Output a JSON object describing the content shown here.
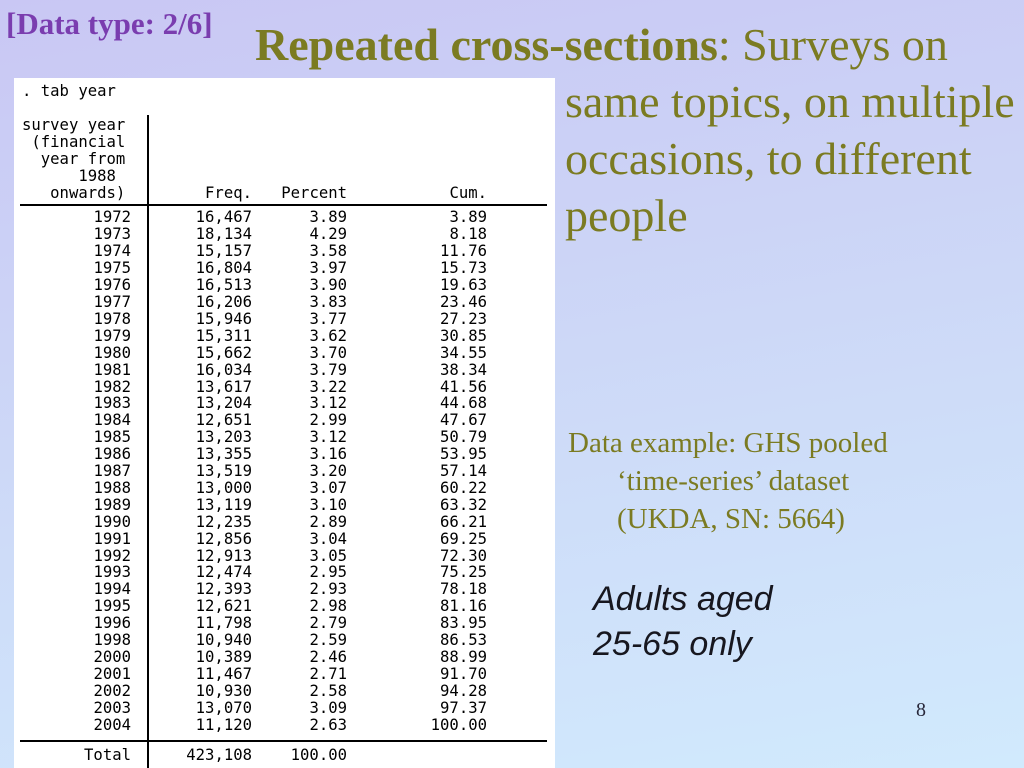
{
  "slide": {
    "tag": "[Data type: 2/6]",
    "title": {
      "bold": "Repeated cross-sections",
      "rest": ": Surveys on",
      "line2": "same topics, on multiple",
      "line3": "occasions, to different",
      "line4": "people"
    },
    "data_example": {
      "line1": "Data example: GHS pooled",
      "line2": "‘time-series’ dataset",
      "line3": "(UKDA, SN: 5664)"
    },
    "note": {
      "line1": "Adults aged",
      "line2": "25-65 only"
    },
    "page_number": "8"
  },
  "stata": {
    "command": ". tab year",
    "var_label": "survey year\n (financial\n  year from\n      1988\n   onwards)",
    "columns": {
      "freq": "Freq.",
      "percent": "Percent",
      "cum": "Cum."
    },
    "rows": [
      [
        "1972",
        "16,467",
        "3.89",
        "3.89"
      ],
      [
        "1973",
        "18,134",
        "4.29",
        "8.18"
      ],
      [
        "1974",
        "15,157",
        "3.58",
        "11.76"
      ],
      [
        "1975",
        "16,804",
        "3.97",
        "15.73"
      ],
      [
        "1976",
        "16,513",
        "3.90",
        "19.63"
      ],
      [
        "1977",
        "16,206",
        "3.83",
        "23.46"
      ],
      [
        "1978",
        "15,946",
        "3.77",
        "27.23"
      ],
      [
        "1979",
        "15,311",
        "3.62",
        "30.85"
      ],
      [
        "1980",
        "15,662",
        "3.70",
        "34.55"
      ],
      [
        "1981",
        "16,034",
        "3.79",
        "38.34"
      ],
      [
        "1982",
        "13,617",
        "3.22",
        "41.56"
      ],
      [
        "1983",
        "13,204",
        "3.12",
        "44.68"
      ],
      [
        "1984",
        "12,651",
        "2.99",
        "47.67"
      ],
      [
        "1985",
        "13,203",
        "3.12",
        "50.79"
      ],
      [
        "1986",
        "13,355",
        "3.16",
        "53.95"
      ],
      [
        "1987",
        "13,519",
        "3.20",
        "57.14"
      ],
      [
        "1988",
        "13,000",
        "3.07",
        "60.22"
      ],
      [
        "1989",
        "13,119",
        "3.10",
        "63.32"
      ],
      [
        "1990",
        "12,235",
        "2.89",
        "66.21"
      ],
      [
        "1991",
        "12,856",
        "3.04",
        "69.25"
      ],
      [
        "1992",
        "12,913",
        "3.05",
        "72.30"
      ],
      [
        "1993",
        "12,474",
        "2.95",
        "75.25"
      ],
      [
        "1994",
        "12,393",
        "2.93",
        "78.18"
      ],
      [
        "1995",
        "12,621",
        "2.98",
        "81.16"
      ],
      [
        "1996",
        "11,798",
        "2.79",
        "83.95"
      ],
      [
        "1998",
        "10,940",
        "2.59",
        "86.53"
      ],
      [
        "2000",
        "10,389",
        "2.46",
        "88.99"
      ],
      [
        "2001",
        "11,467",
        "2.71",
        "91.70"
      ],
      [
        "2002",
        "10,930",
        "2.58",
        "94.28"
      ],
      [
        "2003",
        "13,070",
        "3.09",
        "97.37"
      ],
      [
        "2004",
        "11,120",
        "2.63",
        "100.00"
      ]
    ],
    "total": [
      "Total",
      "423,108",
      "100.00",
      ""
    ]
  },
  "colors": {
    "title_olive": "#7b7b22",
    "tag_purple": "#7a3daf",
    "background_top": "#c9c7f4",
    "background_bottom": "#d1eafd",
    "table_background": "#ffffff"
  }
}
